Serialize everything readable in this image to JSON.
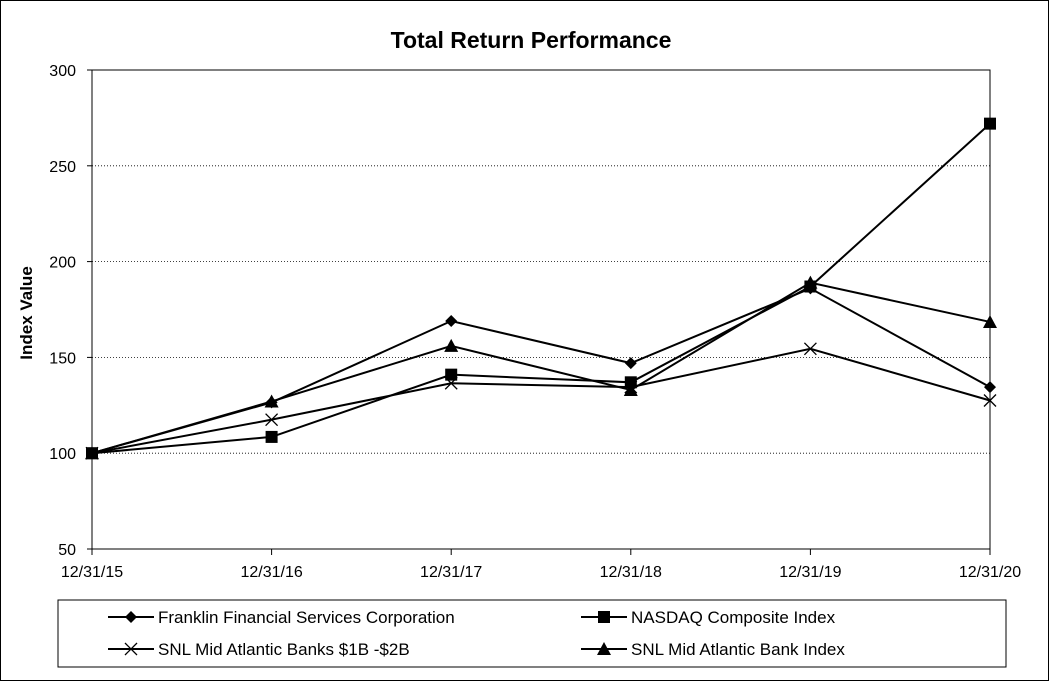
{
  "chart_data": {
    "type": "line",
    "title": "Total Return Performance",
    "xlabel": "",
    "ylabel": "Index Value",
    "categories": [
      "12/31/15",
      "12/31/16",
      "12/31/17",
      "12/31/18",
      "12/31/19",
      "12/31/20"
    ],
    "ylim": [
      50,
      300
    ],
    "yticks": [
      50,
      100,
      150,
      200,
      250,
      300
    ],
    "grid": "horizontal-dotted",
    "legend_position": "bottom",
    "series": [
      {
        "name": "Franklin Financial Services Corporation",
        "marker": "diamond",
        "color": "#000000",
        "values": [
          100,
          126.5,
          169,
          147,
          186,
          134.5
        ]
      },
      {
        "name": "NASDAQ Composite Index",
        "marker": "square",
        "color": "#000000",
        "values": [
          100,
          108.5,
          141,
          137,
          187,
          272
        ]
      },
      {
        "name": "SNL Mid Atlantic Banks $1B -$2B",
        "marker": "x",
        "color": "#000000",
        "values": [
          100,
          117.5,
          136.5,
          134.5,
          154.5,
          127.5
        ]
      },
      {
        "name": "SNL Mid Atlantic Bank Index",
        "marker": "triangle",
        "color": "#000000",
        "values": [
          100,
          127,
          156,
          133,
          189,
          168.5
        ]
      }
    ]
  }
}
